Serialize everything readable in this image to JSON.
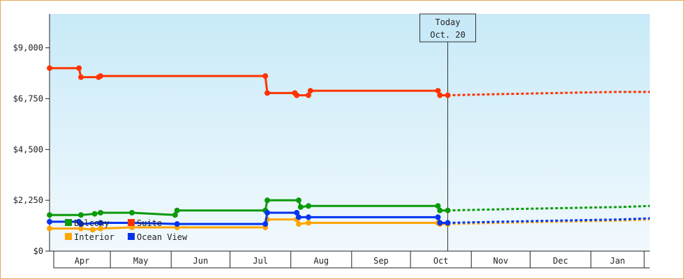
{
  "chart_data": {
    "type": "line",
    "y_ticks": [
      0,
      2250,
      4500,
      6750,
      9000
    ],
    "y_tick_labels": [
      "$0",
      "$2,250",
      "$4,500",
      "$6,750",
      "$9,000"
    ],
    "ylim": [
      0,
      10500
    ],
    "x_months": [
      "Apr",
      "May",
      "Jun",
      "Jul",
      "Aug",
      "Sep",
      "Oct",
      "Nov",
      "Dec",
      "Jan"
    ],
    "xlim": [
      "2024-03-31",
      "2025-01-31"
    ],
    "today": {
      "date": "2024-10-20",
      "line1": "Today",
      "line2": "Oct. 20"
    },
    "grid": false,
    "legend_position": "bottom-left",
    "series": [
      {
        "name": "Balcony",
        "color": "#0a9a0a",
        "points": [
          [
            "2024-03-31",
            1600
          ],
          [
            "2024-04-16",
            1600
          ],
          [
            "2024-04-23",
            1650
          ],
          [
            "2024-04-26",
            1700
          ],
          [
            "2024-05-12",
            1700
          ],
          [
            "2024-06-03",
            1600
          ],
          [
            "2024-06-04",
            1800
          ],
          [
            "2024-07-19",
            1800
          ],
          [
            "2024-07-20",
            2250
          ],
          [
            "2024-08-05",
            2250
          ],
          [
            "2024-08-06",
            1950
          ],
          [
            "2024-08-10",
            2000
          ],
          [
            "2024-10-15",
            2000
          ],
          [
            "2024-10-16",
            1800
          ],
          [
            "2024-10-20",
            1800
          ]
        ],
        "forecast": [
          [
            "2024-10-20",
            1800
          ],
          [
            "2024-11-15",
            1850
          ],
          [
            "2024-12-15",
            1900
          ],
          [
            "2025-01-15",
            1950
          ],
          [
            "2025-01-31",
            2000
          ]
        ]
      },
      {
        "name": "Suite",
        "color": "#ff3300",
        "points": [
          [
            "2024-03-31",
            8100
          ],
          [
            "2024-04-15",
            8100
          ],
          [
            "2024-04-16",
            7700
          ],
          [
            "2024-04-25",
            7700
          ],
          [
            "2024-04-26",
            7750
          ],
          [
            "2024-07-19",
            7750
          ],
          [
            "2024-07-20",
            7000
          ],
          [
            "2024-08-03",
            7000
          ],
          [
            "2024-08-04",
            6900
          ],
          [
            "2024-08-10",
            6900
          ],
          [
            "2024-08-11",
            7100
          ],
          [
            "2024-10-15",
            7100
          ],
          [
            "2024-10-16",
            6900
          ],
          [
            "2024-10-20",
            6900
          ]
        ],
        "forecast": [
          [
            "2024-10-20",
            6900
          ],
          [
            "2024-11-15",
            6950
          ],
          [
            "2024-12-15",
            7000
          ],
          [
            "2025-01-15",
            7050
          ],
          [
            "2025-01-31",
            7050
          ]
        ]
      },
      {
        "name": "Interior",
        "color": "#ffa500",
        "points": [
          [
            "2024-03-31",
            1000
          ],
          [
            "2024-04-16",
            1000
          ],
          [
            "2024-04-22",
            950
          ],
          [
            "2024-04-26",
            1000
          ],
          [
            "2024-05-12",
            1050
          ],
          [
            "2024-06-04",
            1050
          ],
          [
            "2024-07-19",
            1050
          ],
          [
            "2024-07-20",
            1400
          ],
          [
            "2024-08-04",
            1400
          ],
          [
            "2024-08-05",
            1200
          ],
          [
            "2024-08-10",
            1250
          ],
          [
            "2024-10-15",
            1250
          ],
          [
            "2024-10-16",
            1200
          ],
          [
            "2024-10-20",
            1200
          ]
        ],
        "forecast": [
          [
            "2024-10-20",
            1200
          ],
          [
            "2024-11-15",
            1250
          ],
          [
            "2024-12-15",
            1300
          ],
          [
            "2025-01-15",
            1350
          ],
          [
            "2025-01-31",
            1400
          ]
        ]
      },
      {
        "name": "Ocean View",
        "color": "#0033ee",
        "points": [
          [
            "2024-03-31",
            1300
          ],
          [
            "2024-04-15",
            1300
          ],
          [
            "2024-04-16",
            1200
          ],
          [
            "2024-04-26",
            1250
          ],
          [
            "2024-05-12",
            1250
          ],
          [
            "2024-06-04",
            1200
          ],
          [
            "2024-07-19",
            1200
          ],
          [
            "2024-07-20",
            1700
          ],
          [
            "2024-08-04",
            1700
          ],
          [
            "2024-08-05",
            1500
          ],
          [
            "2024-08-10",
            1500
          ],
          [
            "2024-10-15",
            1500
          ],
          [
            "2024-10-16",
            1250
          ],
          [
            "2024-10-20",
            1250
          ]
        ],
        "forecast": [
          [
            "2024-10-20",
            1250
          ],
          [
            "2024-11-15",
            1300
          ],
          [
            "2024-12-15",
            1350
          ],
          [
            "2025-01-15",
            1400
          ],
          [
            "2025-01-31",
            1450
          ]
        ]
      }
    ]
  }
}
